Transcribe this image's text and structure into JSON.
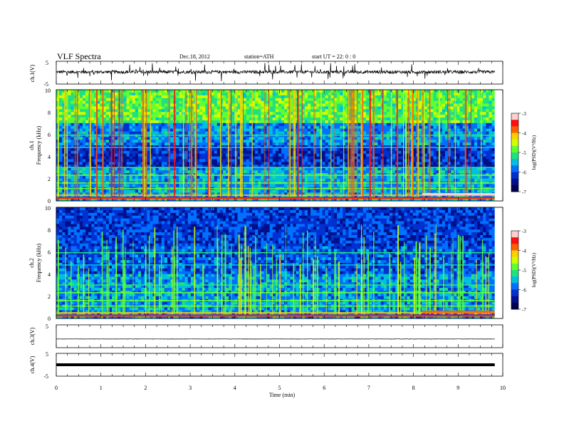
{
  "header": {
    "title": "VLF  Spectra",
    "date": "Dec.18, 2012",
    "station": "station=ATH",
    "start": "start  UT  =   22: 0  : 0"
  },
  "colorbar": {
    "ticks": [
      "-3",
      "-4",
      "-5",
      "-6",
      "-7"
    ],
    "label": "log(PSD)(V²/Hz)",
    "colors": [
      "#ffffff",
      "#ff2020",
      "#ffb000",
      "#ffff00",
      "#20ff20",
      "#00e0e0",
      "#0040ff",
      "#000060"
    ]
  },
  "chart_data": [
    {
      "type": "line",
      "name": "ch1-waveform",
      "ylabel": "ch.1(V)",
      "ylim": [
        -5,
        5
      ],
      "yticks": [
        "5",
        "-5"
      ],
      "x_unit": "min",
      "xlim": [
        0,
        10
      ],
      "data_end": 9.82,
      "baseline": 0.3
    },
    {
      "type": "heatmap",
      "name": "ch1-spectrogram",
      "channel_label": "ch.1",
      "ylabel": "Frequency  (kHz)",
      "ylim": [
        0,
        10
      ],
      "yticks": [
        "0",
        "2",
        "4",
        "6",
        "8",
        "10"
      ],
      "xlim": [
        0,
        10
      ],
      "data_end": 9.82,
      "zlim": [
        -7,
        -3
      ]
    },
    {
      "type": "heatmap",
      "name": "ch2-spectrogram",
      "channel_label": "ch.2",
      "ylabel": "Frequency  (kHz)",
      "ylim": [
        0,
        10
      ],
      "yticks": [
        "0",
        "2",
        "4",
        "6",
        "8",
        "10"
      ],
      "xlim": [
        0,
        10
      ],
      "data_end": 9.82,
      "zlim": [
        -7,
        -3
      ]
    },
    {
      "type": "line",
      "name": "ch3-waveform",
      "ylabel": "ch.3(V)",
      "ylim": [
        -5,
        5
      ],
      "yticks": [
        "5"
      ],
      "xlim": [
        0,
        10
      ],
      "data_end": 9.82,
      "baseline": -1.2
    },
    {
      "type": "line",
      "name": "ch4-waveform",
      "ylabel": "ch.4(V)",
      "ylim": [
        -5,
        5
      ],
      "yticks": [
        "5",
        "-5"
      ],
      "xlim": [
        0,
        10
      ],
      "data_end": 9.82,
      "baseline": 0.0
    }
  ],
  "xaxis": {
    "label": "Time  (min)",
    "ticks": [
      "0",
      "1",
      "2",
      "3",
      "4",
      "5",
      "6",
      "7",
      "8",
      "9",
      "10"
    ]
  }
}
